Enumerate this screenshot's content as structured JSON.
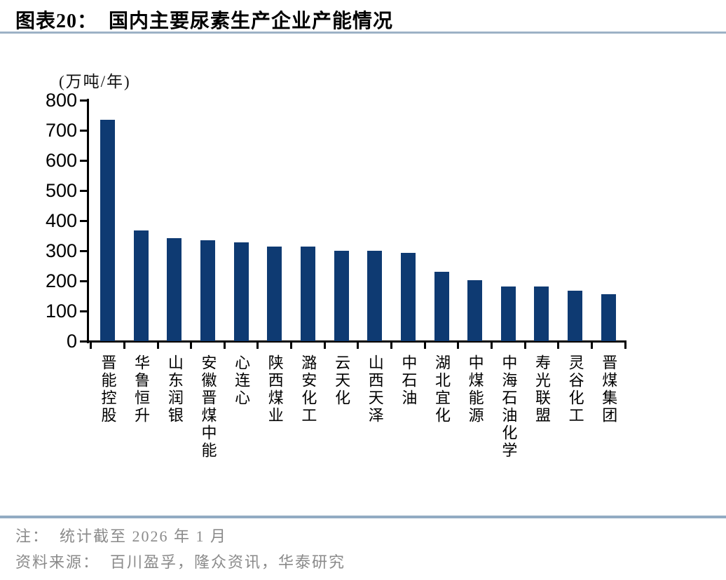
{
  "page": {
    "title": "图表20：  国内主要尿素生产企业产能情况"
  },
  "chart_data": {
    "type": "bar",
    "title": "国内主要尿素生产企业产能情况",
    "unit_label": "(万吨/年)",
    "categories": [
      "晋能控股",
      "华鲁恒升",
      "山东润银",
      "安徽晋煤中能",
      "心连心",
      "陕西煤业",
      "潞安化工",
      "云天化",
      "山西天泽",
      "中石油",
      "湖北宜化",
      "中煤能源",
      "中海石油化学",
      "寿光联盟",
      "灵谷化工",
      "晋煤集团"
    ],
    "values": [
      735,
      368,
      342,
      334,
      327,
      314,
      313,
      300,
      300,
      294,
      230,
      202,
      182,
      181,
      168,
      155
    ],
    "ylabel": "",
    "xlabel": "",
    "ylim": [
      0,
      800
    ],
    "ytick_step": 100,
    "grid": false,
    "legend": false,
    "bar_color": "#0e3a72",
    "axis_color": "#000000"
  },
  "footer": {
    "note": "注：  统计截至 2026 年 1 月",
    "source": "资料来源：  百川盈孚，隆众资讯，华泰研究"
  },
  "colors": {
    "title_divider": "#9db2c6",
    "footer_divider": "#92abc3",
    "footer_text": "#8a8a8a"
  }
}
